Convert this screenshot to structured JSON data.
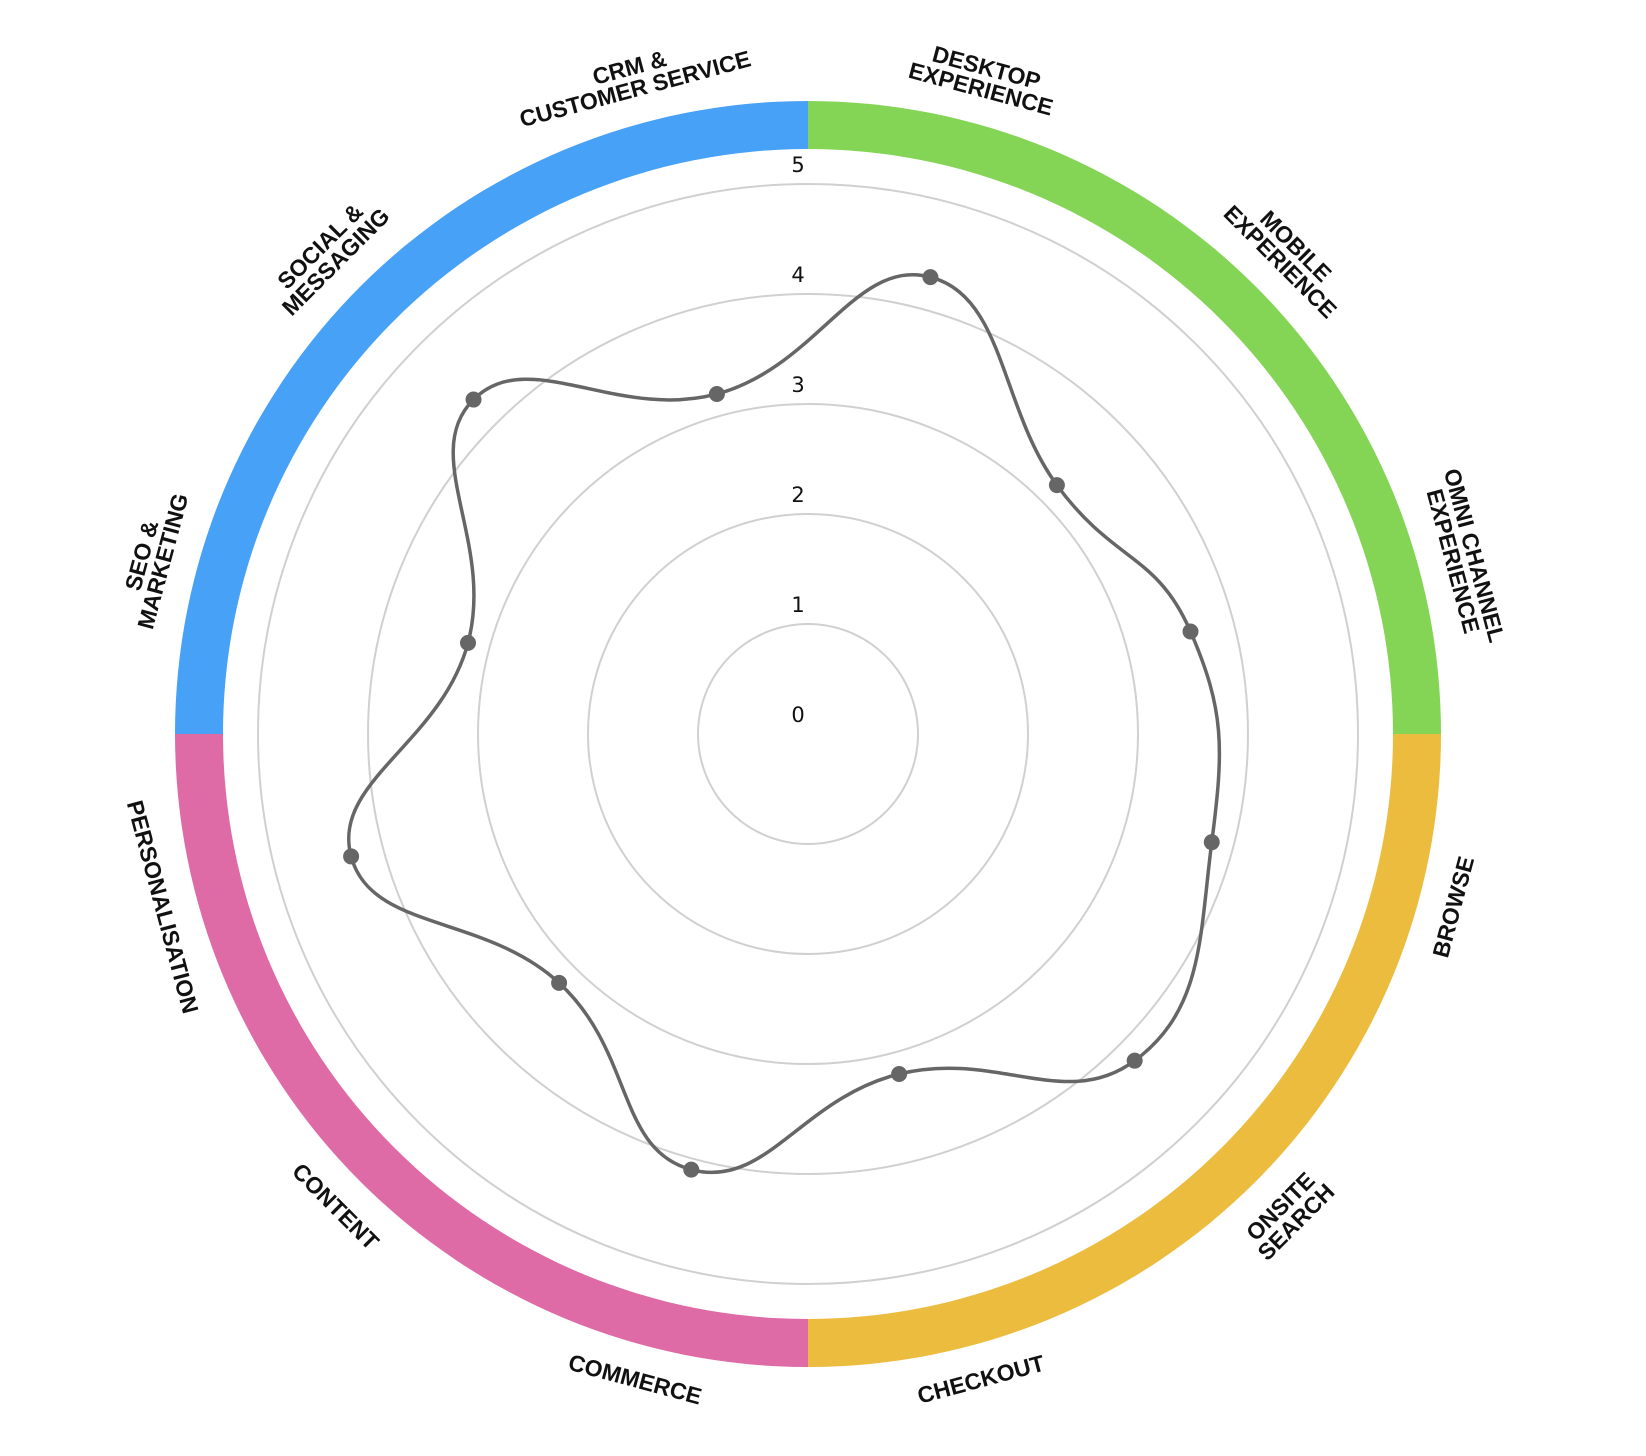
{
  "chart_data": {
    "type": "radar",
    "axis": {
      "min": 0,
      "max": 5,
      "ticks": [
        "0",
        "1",
        "2",
        "3",
        "4",
        "5"
      ]
    },
    "grid": true,
    "categories": [
      {
        "lines": [
          "DESKTOP",
          "EXPERIENCE"
        ]
      },
      {
        "lines": [
          "MOBILE",
          "EXPERIENCE"
        ]
      },
      {
        "lines": [
          "OMNI CHANNEL",
          "EXPERIENCE"
        ]
      },
      {
        "lines": [
          "BROWSE"
        ]
      },
      {
        "lines": [
          "ONSITE",
          "SEARCH"
        ]
      },
      {
        "lines": [
          "CHECKOUT"
        ]
      },
      {
        "lines": [
          "COMMERCE"
        ]
      },
      {
        "lines": [
          "CONTENT"
        ]
      },
      {
        "lines": [
          "PERSONALISATION"
        ]
      },
      {
        "lines": [
          "SEO &",
          "MARKETING"
        ]
      },
      {
        "lines": [
          "SOCIAL &",
          "MESSAGING"
        ]
      },
      {
        "lines": [
          "CRM &",
          "CUSTOMER SERVICE"
        ]
      }
    ],
    "series": [
      {
        "values": [
          4.3,
          3.2,
          3.6,
          3.8,
          4.2,
          3.2,
          4.1,
          3.2,
          4.3,
          3.2,
          4.3,
          3.2
        ],
        "color": "#666666"
      }
    ],
    "groups": [
      {
        "color": "#84d455",
        "categories": [
          "DESKTOP EXPERIENCE",
          "MOBILE EXPERIENCE",
          "OMNI CHANNEL EXPERIENCE"
        ]
      },
      {
        "color": "#ecbc3f",
        "categories": [
          "BROWSE",
          "ONSITE SEARCH",
          "CHECKOUT"
        ]
      },
      {
        "color": "#de6ba6",
        "categories": [
          "COMMERCE",
          "CONTENT",
          "PERSONALISATION"
        ]
      },
      {
        "color": "#47a1f6",
        "categories": [
          "SEO & MARKETING",
          "SOCIAL & MESSAGING",
          "CRM & CUSTOMER SERVICE"
        ]
      }
    ]
  }
}
